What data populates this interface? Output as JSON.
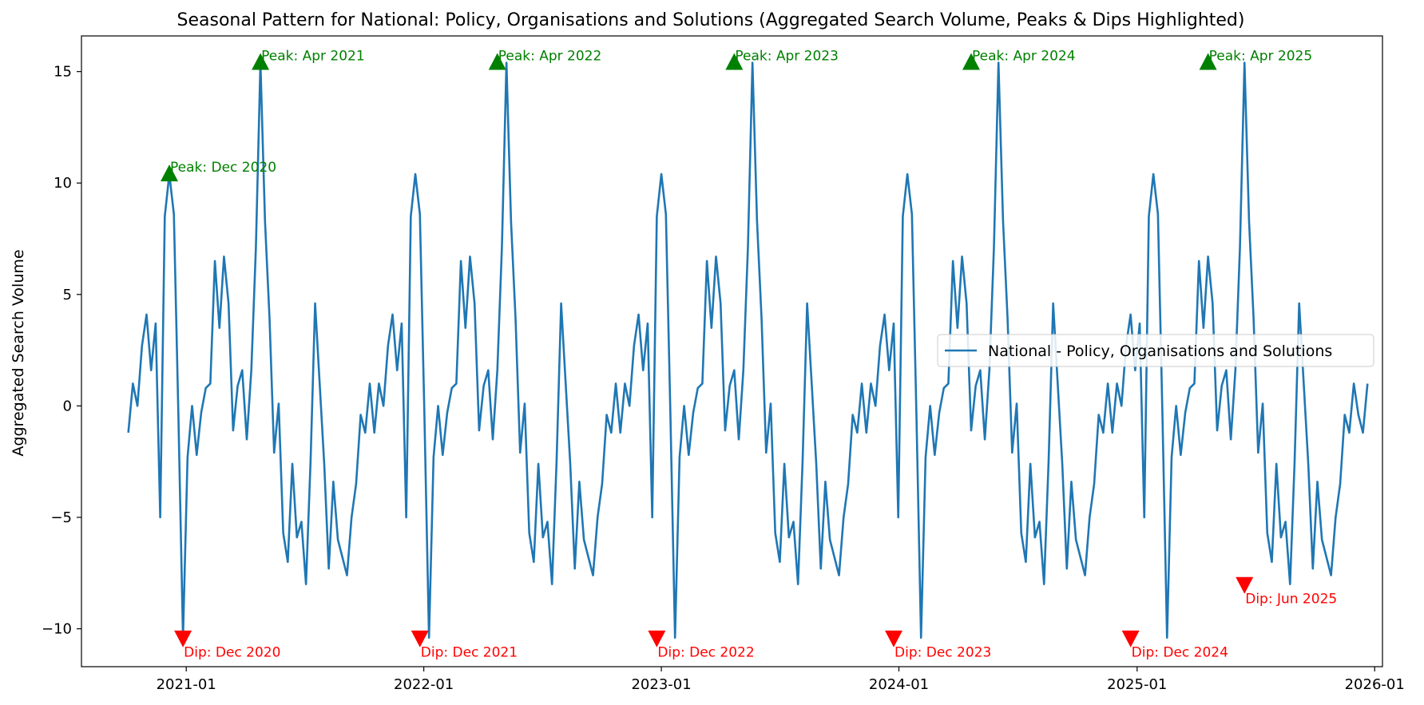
{
  "chart_data": {
    "type": "line",
    "title": "Seasonal Pattern for National: Policy, Organisations and Solutions (Aggregated Search Volume, Peaks & Dips Highlighted)",
    "xlabel": "",
    "ylabel": "Aggregated Search Volume",
    "xlim": [
      "2020-07-24",
      "2026-01-13"
    ],
    "ylim": [
      -11.7,
      16.6
    ],
    "grid": false,
    "legend": {
      "position": "center-right",
      "entries": [
        "National - Policy, Organisations and Solutions"
      ]
    },
    "x_ticks": [
      "2021-01",
      "2022-01",
      "2023-01",
      "2024-01",
      "2025-01",
      "2026-01"
    ],
    "y_ticks": [
      {
        "value": 15,
        "label": "15"
      },
      {
        "value": 10,
        "label": "10"
      },
      {
        "value": 5,
        "label": "5"
      },
      {
        "value": 0,
        "label": "0"
      },
      {
        "value": -5,
        "label": "−5"
      },
      {
        "value": -10,
        "label": "−10"
      }
    ],
    "weekly_pattern": [
      -1.2,
      1.0,
      0.0,
      2.7,
      4.1,
      1.6,
      3.7,
      -5.0,
      8.5,
      10.4,
      8.6,
      -0.5,
      -10.4,
      -2.3,
      0.0,
      -2.2,
      -0.3,
      0.8,
      1.0,
      6.5,
      3.5,
      6.7,
      4.6,
      -1.1,
      0.9,
      1.6,
      -1.5,
      1.6,
      7.1,
      15.4,
      8.3,
      3.9,
      -2.1,
      0.1,
      -5.7,
      -7.0,
      -2.6,
      -5.9,
      -5.2,
      -8.0,
      -2.5,
      4.6,
      1.0,
      -2.6,
      -7.3,
      -3.4,
      -6.0,
      -6.8,
      -7.6,
      -5.0,
      -3.5,
      -0.4,
      -1.2,
      1.0
    ],
    "series": [
      {
        "name": "National - Policy, Organisations and Solutions",
        "color": "#1f77b4",
        "start_date": "2020-10-04",
        "interval": "weekly",
        "cycles": 5,
        "extra_points": [
          -0.4,
          -1.2,
          1.0
        ]
      }
    ],
    "annotations": [
      {
        "type": "peak",
        "date": "2020-12-06",
        "value": 10.4,
        "label": "Peak: Dec 2020"
      },
      {
        "type": "peak",
        "date": "2021-04-25",
        "value": 15.4,
        "label": "Peak: Apr 2021"
      },
      {
        "type": "peak",
        "date": "2022-04-24",
        "value": 15.4,
        "label": "Peak: Apr 2022"
      },
      {
        "type": "peak",
        "date": "2023-04-23",
        "value": 15.4,
        "label": "Peak: Apr 2023"
      },
      {
        "type": "peak",
        "date": "2024-04-21",
        "value": 15.4,
        "label": "Peak: Apr 2024"
      },
      {
        "type": "peak",
        "date": "2025-04-20",
        "value": 15.4,
        "label": "Peak: Apr 2025"
      },
      {
        "type": "dip",
        "date": "2020-12-27",
        "value": -10.4,
        "label": "Dip: Dec 2020"
      },
      {
        "type": "dip",
        "date": "2021-12-26",
        "value": -10.4,
        "label": "Dip: Dec 2021"
      },
      {
        "type": "dip",
        "date": "2022-12-25",
        "value": -10.4,
        "label": "Dip: Dec 2022"
      },
      {
        "type": "dip",
        "date": "2023-12-24",
        "value": -10.4,
        "label": "Dip: Dec 2023"
      },
      {
        "type": "dip",
        "date": "2024-12-22",
        "value": -10.4,
        "label": "Dip: Dec 2024"
      },
      {
        "type": "dip",
        "date": "2025-06-15",
        "value": -8.0,
        "label": "Dip: Jun 2025"
      }
    ],
    "colors": {
      "line": "#1f77b4",
      "peak": "#008000",
      "dip": "#ff0000"
    }
  }
}
